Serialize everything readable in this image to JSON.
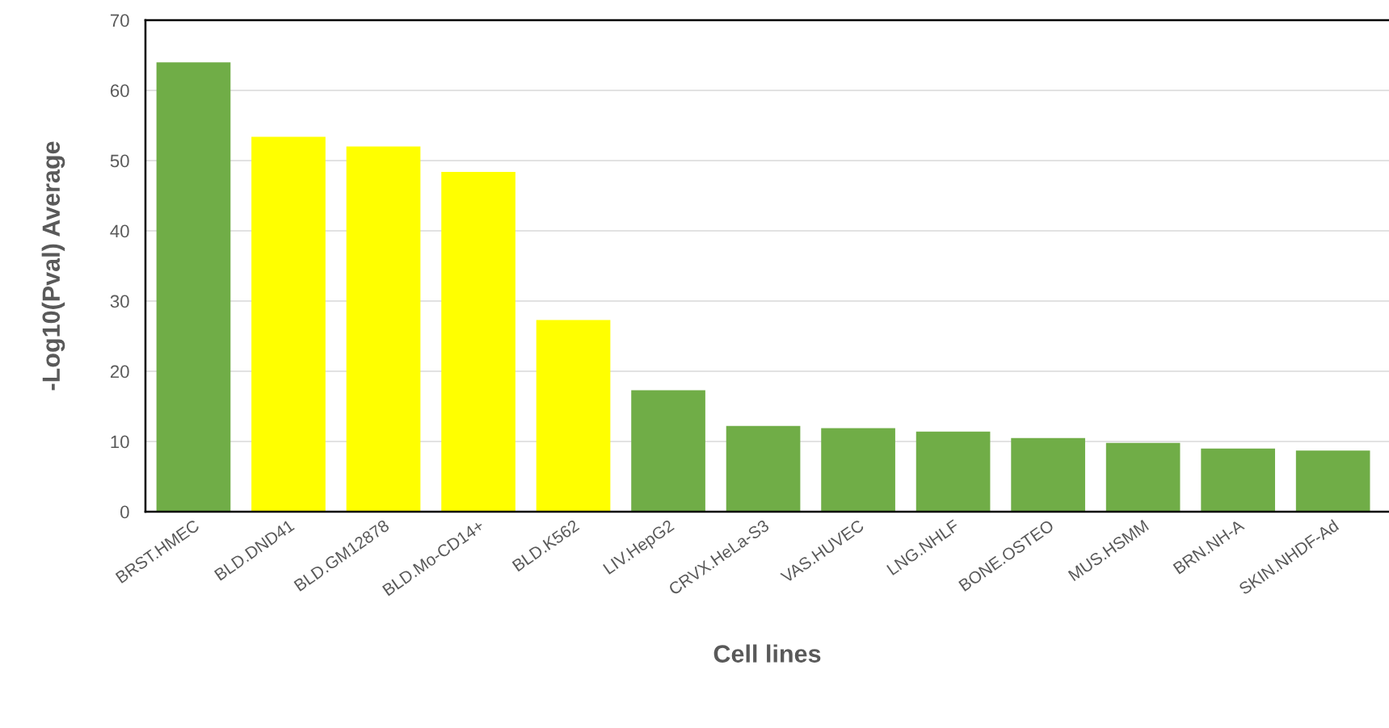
{
  "chart_data": {
    "type": "bar",
    "xlabel": "Cell lines",
    "ylabel": "-Log10(Pval) Average",
    "categories": [
      "BRST.HMEC",
      "BLD.DND41",
      "BLD.GM12878",
      "BLD.Mo-CD14+",
      "BLD.K562",
      "LIV.HepG2",
      "CRVX.HeLa-S3",
      "VAS.HUVEC",
      "LNG.NHLF",
      "BONE.OSTEO",
      "MUS.HSMM",
      "BRN.NH-A",
      "SKIN.NHDF-Ad"
    ],
    "values": [
      64.0,
      53.4,
      52.0,
      48.4,
      27.3,
      17.3,
      12.2,
      11.9,
      11.4,
      10.5,
      9.8,
      9.0,
      8.7
    ],
    "colors": [
      "#70ad47",
      "#ffff00",
      "#ffff00",
      "#ffff00",
      "#ffff00",
      "#70ad47",
      "#70ad47",
      "#70ad47",
      "#70ad47",
      "#70ad47",
      "#70ad47",
      "#70ad47",
      "#70ad47"
    ],
    "ylim": [
      0,
      70
    ],
    "yticks": [
      0,
      10,
      20,
      30,
      40,
      50,
      60,
      70
    ],
    "grid": "y"
  }
}
